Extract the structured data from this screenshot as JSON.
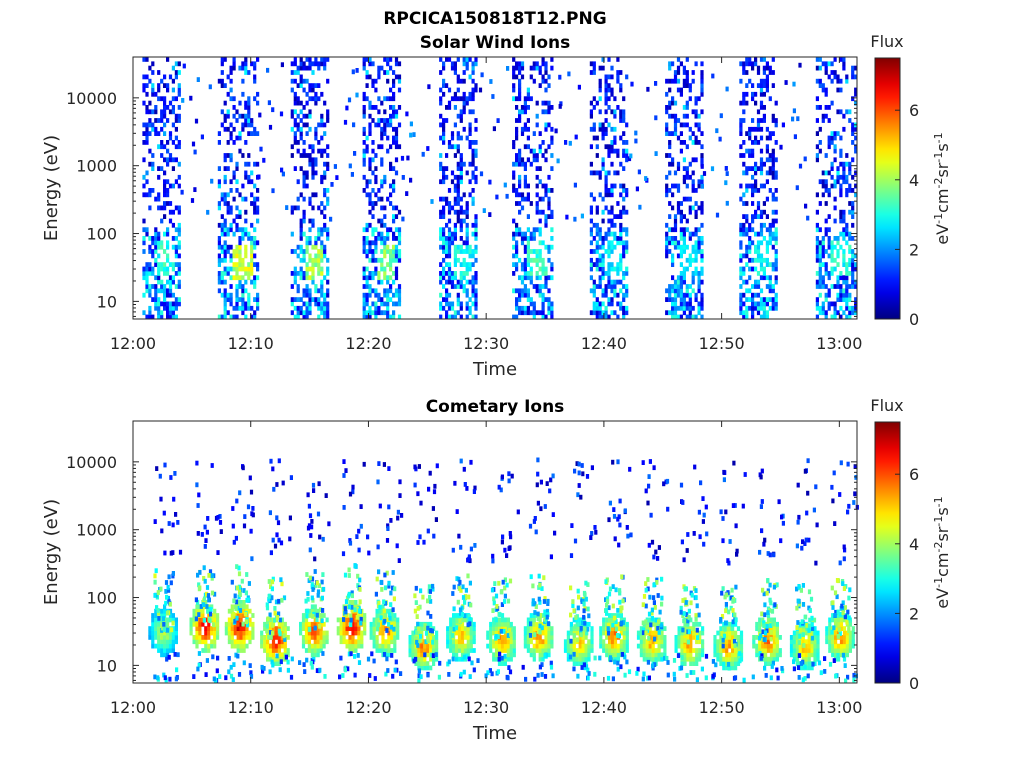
{
  "figure": {
    "title": "RPCICA150818T12.PNG"
  },
  "colors": {
    "colormap": "jet",
    "axis": "#262626"
  },
  "chart_data": [
    {
      "type": "heatmap",
      "title": "Solar Wind Ions",
      "xlabel": "Time",
      "ylabel": "Energy (eV)",
      "x_ticks": [
        "12:00",
        "12:10",
        "12:20",
        "12:30",
        "12:40",
        "12:50",
        "13:00"
      ],
      "y_ticks": [
        "10",
        "100",
        "1000",
        "10000"
      ],
      "y_scale": "log",
      "ylim": [
        5.5,
        40000
      ],
      "xlim_minutes": [
        0,
        61.5
      ],
      "colorbar": {
        "title": "Flux",
        "label": "eV-1cm-2sr-1s-1",
        "ticks": [
          "0",
          "2",
          "4",
          "6"
        ],
        "range": [
          0,
          7.5
        ]
      },
      "sweeps": [
        {
          "t_start": 0.8,
          "t_end": 4.0,
          "peak_energy": 40,
          "peak_flux": 3.5
        },
        {
          "t_start": 7.2,
          "t_end": 10.5,
          "peak_energy": 35,
          "peak_flux": 4.8
        },
        {
          "t_start": 13.4,
          "t_end": 16.5,
          "peak_energy": 35,
          "peak_flux": 4.5
        },
        {
          "t_start": 19.5,
          "t_end": 22.7,
          "peak_energy": 35,
          "peak_flux": 4.2
        },
        {
          "t_start": 26.0,
          "t_end": 29.2,
          "peak_energy": 35,
          "peak_flux": 3.3
        },
        {
          "t_start": 32.2,
          "t_end": 35.5,
          "peak_energy": 40,
          "peak_flux": 3.6
        },
        {
          "t_start": 38.8,
          "t_end": 42.0,
          "peak_energy": 40,
          "peak_flux": 3.1
        },
        {
          "t_start": 45.2,
          "t_end": 48.2,
          "peak_energy": 40,
          "peak_flux": 3.0
        },
        {
          "t_start": 51.5,
          "t_end": 54.6,
          "peak_energy": 40,
          "peak_flux": 3.2
        },
        {
          "t_start": 58.0,
          "t_end": 61.3,
          "peak_energy": 40,
          "peak_flux": 3.4
        }
      ]
    },
    {
      "type": "heatmap",
      "title": "Cometary Ions",
      "xlabel": "Time",
      "ylabel": "Energy (eV)",
      "x_ticks": [
        "12:00",
        "12:10",
        "12:20",
        "12:30",
        "12:40",
        "12:50",
        "13:00"
      ],
      "y_ticks": [
        "10",
        "100",
        "1000",
        "10000"
      ],
      "y_scale": "log",
      "ylim": [
        5.5,
        40000
      ],
      "xlim_minutes": [
        0,
        61.5
      ],
      "colorbar": {
        "title": "Flux",
        "label": "eV-1cm-2sr-1s-1",
        "ticks": [
          "0",
          "2",
          "4",
          "6"
        ],
        "range": [
          0,
          7.5
        ]
      },
      "blobs": [
        {
          "t": 2.5,
          "energy": 30,
          "flux": 4.5
        },
        {
          "t": 6.0,
          "energy": 35,
          "flux": 7.0
        },
        {
          "t": 9.0,
          "energy": 35,
          "flux": 7.2
        },
        {
          "t": 12.0,
          "energy": 22,
          "flux": 7.0
        },
        {
          "t": 15.3,
          "energy": 30,
          "flux": 6.5
        },
        {
          "t": 18.5,
          "energy": 35,
          "flux": 7.2
        },
        {
          "t": 21.3,
          "energy": 30,
          "flux": 6.0
        },
        {
          "t": 24.6,
          "energy": 18,
          "flux": 6.0
        },
        {
          "t": 27.8,
          "energy": 25,
          "flux": 5.5
        },
        {
          "t": 31.2,
          "energy": 22,
          "flux": 6.0
        },
        {
          "t": 34.4,
          "energy": 25,
          "flux": 6.0
        },
        {
          "t": 37.8,
          "energy": 20,
          "flux": 5.5
        },
        {
          "t": 40.8,
          "energy": 25,
          "flux": 6.0
        },
        {
          "t": 44.0,
          "energy": 22,
          "flux": 5.8
        },
        {
          "t": 47.2,
          "energy": 20,
          "flux": 6.0
        },
        {
          "t": 50.5,
          "energy": 18,
          "flux": 5.8
        },
        {
          "t": 53.8,
          "energy": 22,
          "flux": 6.2
        },
        {
          "t": 57.0,
          "energy": 18,
          "flux": 5.5
        },
        {
          "t": 60.0,
          "energy": 25,
          "flux": 6.0
        }
      ]
    }
  ]
}
